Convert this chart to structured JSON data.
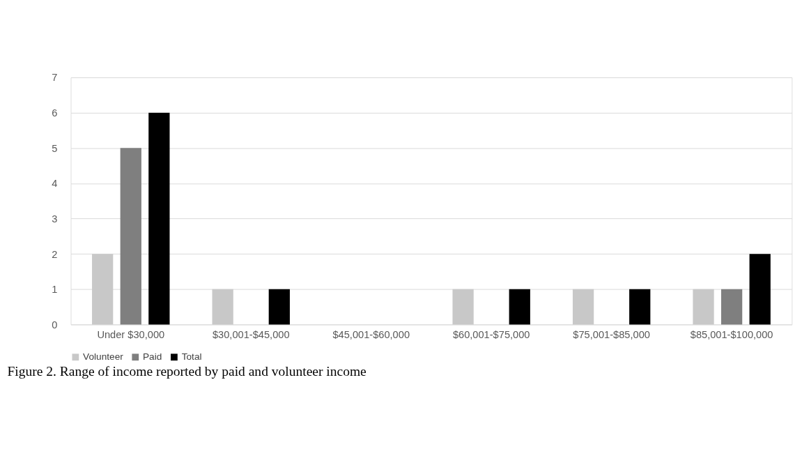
{
  "chart_data": {
    "type": "bar",
    "categories": [
      "Under $30,000",
      "$30,001-$45,000",
      "$45,001-$60,000",
      "$60,001-$75,000",
      "$75,001-$85,000",
      "$85,001-$100,000"
    ],
    "series": [
      {
        "name": "Volunteer",
        "color": "#c8c8c8",
        "values": [
          2,
          1,
          0,
          1,
          1,
          1
        ]
      },
      {
        "name": "Paid",
        "color": "#7f7f7f",
        "values": [
          5,
          0,
          0,
          0,
          0,
          1
        ]
      },
      {
        "name": "Total",
        "color": "#000000",
        "values": [
          6,
          1,
          0,
          1,
          1,
          2
        ]
      }
    ],
    "ylim": [
      0,
      7
    ],
    "yticks": [
      0,
      1,
      2,
      3,
      4,
      5,
      6,
      7
    ],
    "grid": "y",
    "legend": "bottom",
    "annotations": [
      "Figure 2. Range of income reported by paid and volunteer income"
    ]
  }
}
